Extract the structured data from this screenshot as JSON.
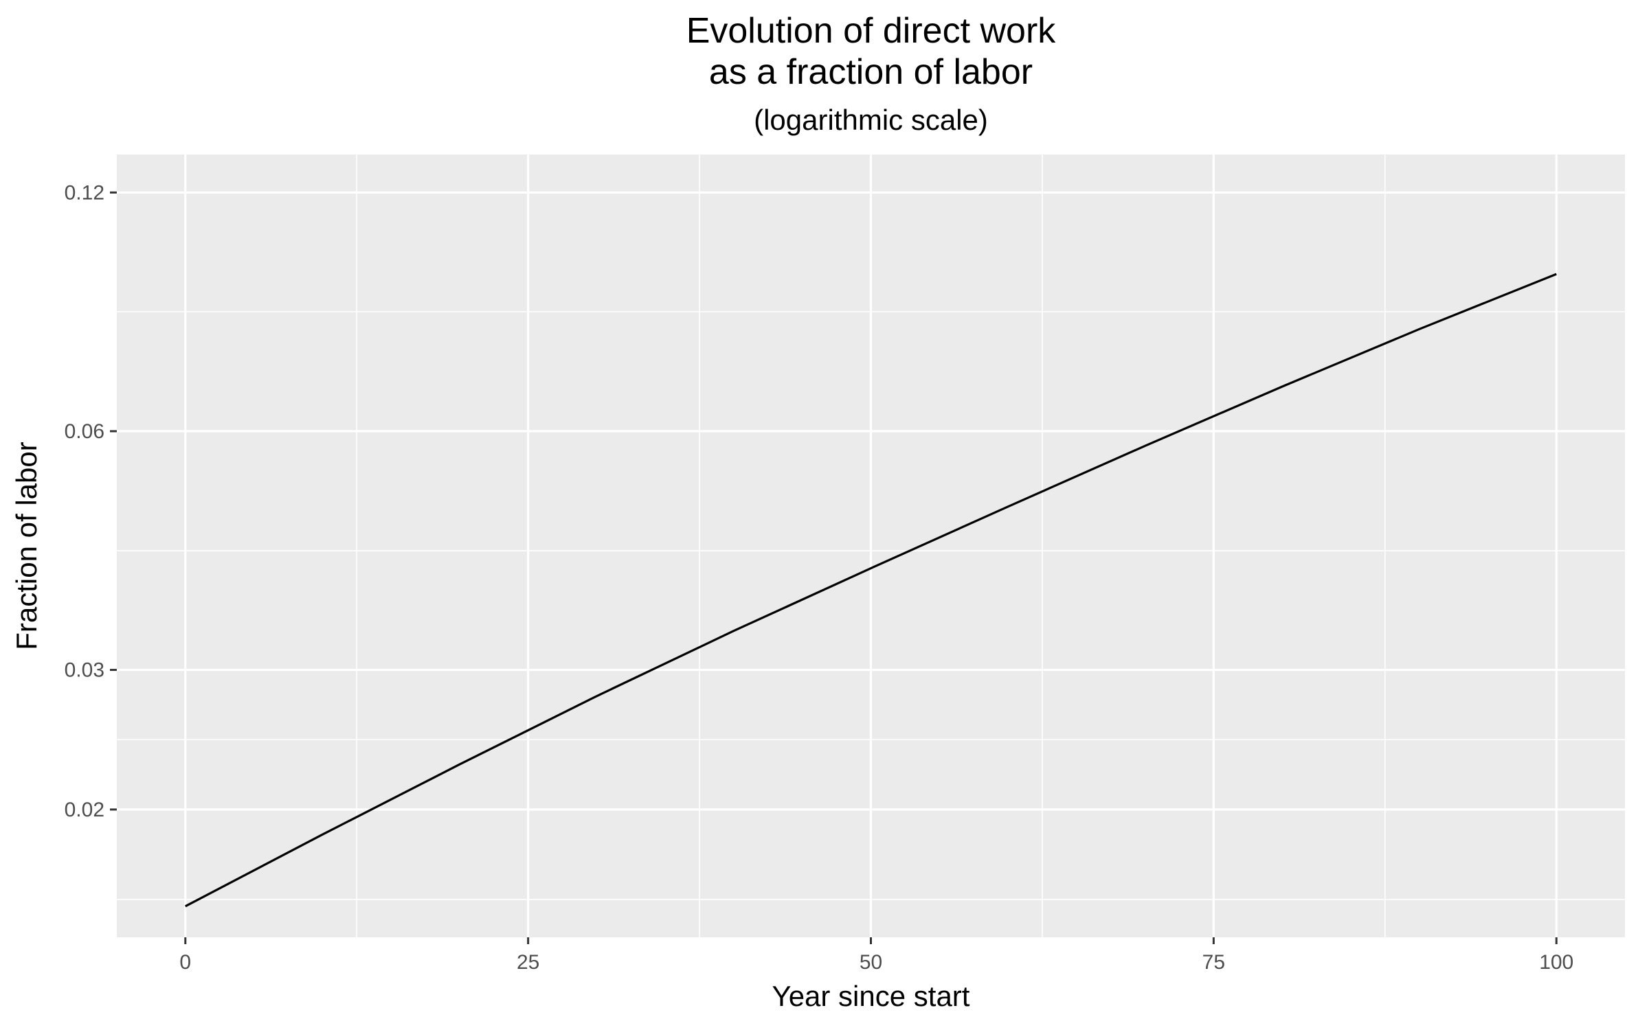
{
  "chart_data": {
    "type": "line",
    "title": [
      "Evolution of direct work",
      "as a fraction of labor"
    ],
    "subtitle": "(logarithmic scale)",
    "xlabel": "Year since start",
    "ylabel": "Fraction of labor",
    "xlim": [
      -5,
      105
    ],
    "ylim": [
      0.0138,
      0.134
    ],
    "yscale": "log",
    "x_ticks": [
      0,
      25,
      50,
      75,
      100
    ],
    "x_tick_labels": [
      "0",
      "25",
      "50",
      "75",
      "100"
    ],
    "x_minor": [
      12.5,
      37.5,
      62.5,
      87.5
    ],
    "y_ticks": [
      0.02,
      0.03,
      0.06,
      0.12
    ],
    "y_tick_labels": [
      "0.02",
      "0.03",
      "0.06",
      "0.12"
    ],
    "y_minor": [
      0.0154,
      0.0245,
      0.0424,
      0.0849
    ],
    "grid": true,
    "background": "#ebebeb",
    "line_color": "#000000",
    "series": [
      {
        "x": [
          0,
          10,
          20,
          30,
          40,
          50,
          60,
          70,
          80,
          90,
          100
        ],
        "y": [
          0.0151,
          0.0186,
          0.0228,
          0.0278,
          0.0336,
          0.0403,
          0.0482,
          0.0575,
          0.0683,
          0.0807,
          0.0947
        ]
      }
    ]
  }
}
